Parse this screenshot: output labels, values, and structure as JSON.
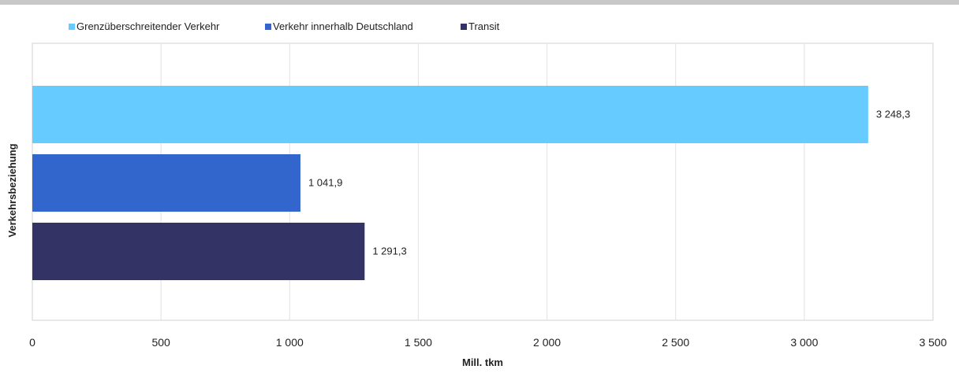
{
  "chart_data": {
    "type": "bar",
    "orientation": "horizontal",
    "categories": [
      "Grenzüberschreitender Verkehr",
      "Verkehr innerhalb Deutschland",
      "Transit"
    ],
    "values": [
      3248.3,
      1041.9,
      1291.3
    ],
    "value_labels": [
      "3 248,3",
      "1 041,9",
      "1 291,3"
    ],
    "colors": [
      "#66ccff",
      "#3366cc",
      "#333366"
    ],
    "xlabel": "Mill. tkm",
    "ylabel": "Verkehrsbeziehung",
    "xlim": [
      0,
      3500
    ],
    "x_ticks": [
      0,
      500,
      1000,
      1500,
      2000,
      2500,
      3000,
      3500
    ],
    "x_tick_labels": [
      "0",
      "500",
      "1 000",
      "1 500",
      "2 000",
      "2 500",
      "3 000",
      "3 500"
    ],
    "grid": "vertical",
    "legend": {
      "position": "top",
      "entries": [
        "Grenzüberschreitender Verkehr",
        "Verkehr innerhalb Deutschland",
        "Transit"
      ]
    }
  }
}
